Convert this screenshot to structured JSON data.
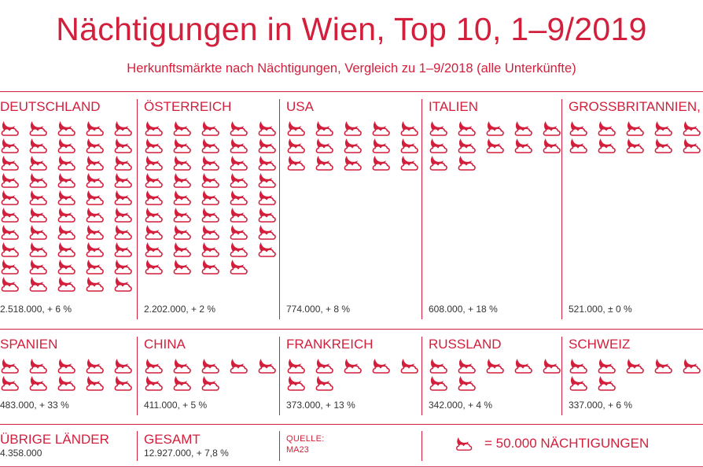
{
  "title": "Nächtigungen in Wien, Top 10, 1–9/2019",
  "subtitle": "Herkunftsmärkte nach Nächtigungen, Vergleich zu 1–9/2018 (alle Unterkünfte)",
  "colors": {
    "accent": "#d21f3c",
    "text_dark": "#333333"
  },
  "icon": "moon-cloud-icon",
  "chart_data": {
    "type": "pictograph",
    "unit_value": 50000,
    "categories": [
      "DEUTSCHLAND",
      "ÖSTERREICH",
      "USA",
      "ITALIEN",
      "GROßBRITANNIEN, NIR",
      "SPANIEN",
      "CHINA",
      "FRANKREICH",
      "RUSSLAND",
      "SCHWEIZ"
    ],
    "values": [
      2518000,
      2202000,
      774000,
      608000,
      521000,
      483000,
      411000,
      373000,
      342000,
      337000
    ],
    "labels": [
      "2.518.000, + 6 %",
      "2.202.000, + 2 %",
      "774.000, + 8 %",
      "608.000, + 18 %",
      "521.000, ± 0 %",
      "483.000, + 33 %",
      "411.000, + 5 %",
      "373.000, + 13 %",
      "342.000, + 4 %",
      "337.000, + 6 %"
    ]
  },
  "footer": {
    "other_label": "ÜBRIGE LÄNDER",
    "other_value": "4.358.000",
    "total_label": "GESAMT",
    "total_value": "12.927.000, + 7,8 %",
    "source_label": "QUELLE:",
    "source_value": "MA23",
    "legend_text": "= 50.000 NÄCHTIGUNGEN"
  }
}
